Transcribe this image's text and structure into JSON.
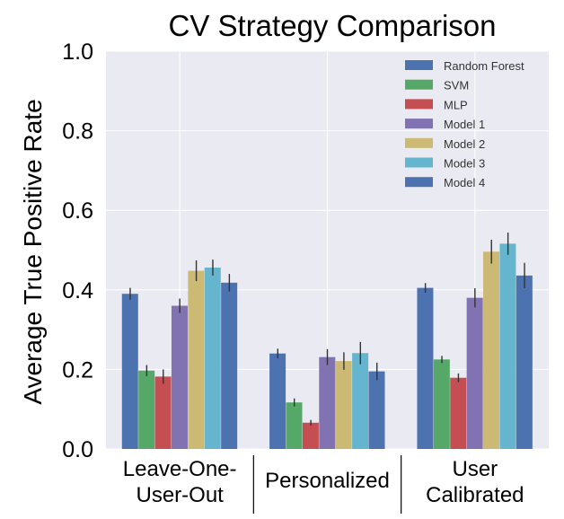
{
  "chart_data": {
    "type": "bar",
    "title": "CV Strategy Comparison",
    "xlabel": "",
    "ylabel": "Average True Positive Rate",
    "ylim": [
      0,
      1.0
    ],
    "yticks": [
      "0.0",
      "0.2",
      "0.4",
      "0.6",
      "0.8",
      "1.0"
    ],
    "grid": true,
    "legend_position": "top-right",
    "categories": [
      [
        "Leave-One-",
        "User-Out"
      ],
      [
        "Personalized"
      ],
      [
        "User",
        "Calibrated"
      ]
    ],
    "series": [
      {
        "name": "Random Forest",
        "color": "#4c72b0",
        "values": [
          0.39,
          0.24,
          0.405
        ],
        "errors": [
          0.015,
          0.012,
          0.012
        ]
      },
      {
        "name": "SVM",
        "color": "#55a868",
        "values": [
          0.197,
          0.117,
          0.225
        ],
        "errors": [
          0.014,
          0.01,
          0.009
        ]
      },
      {
        "name": "MLP",
        "color": "#c44e52",
        "values": [
          0.182,
          0.066,
          0.179
        ],
        "errors": [
          0.018,
          0.007,
          0.011
        ]
      },
      {
        "name": "Model 1",
        "color": "#8172b2",
        "values": [
          0.36,
          0.231,
          0.38
        ],
        "errors": [
          0.018,
          0.02,
          0.024
        ]
      },
      {
        "name": "Model 2",
        "color": "#ccb974",
        "values": [
          0.448,
          0.221,
          0.496
        ],
        "errors": [
          0.026,
          0.022,
          0.03
        ]
      },
      {
        "name": "Model 3",
        "color": "#64b5cd",
        "values": [
          0.456,
          0.241,
          0.516
        ],
        "errors": [
          0.02,
          0.028,
          0.028
        ]
      },
      {
        "name": "Model 4",
        "color": "#4c72b0",
        "values": [
          0.418,
          0.195,
          0.436
        ],
        "errors": [
          0.022,
          0.022,
          0.032
        ]
      }
    ]
  }
}
